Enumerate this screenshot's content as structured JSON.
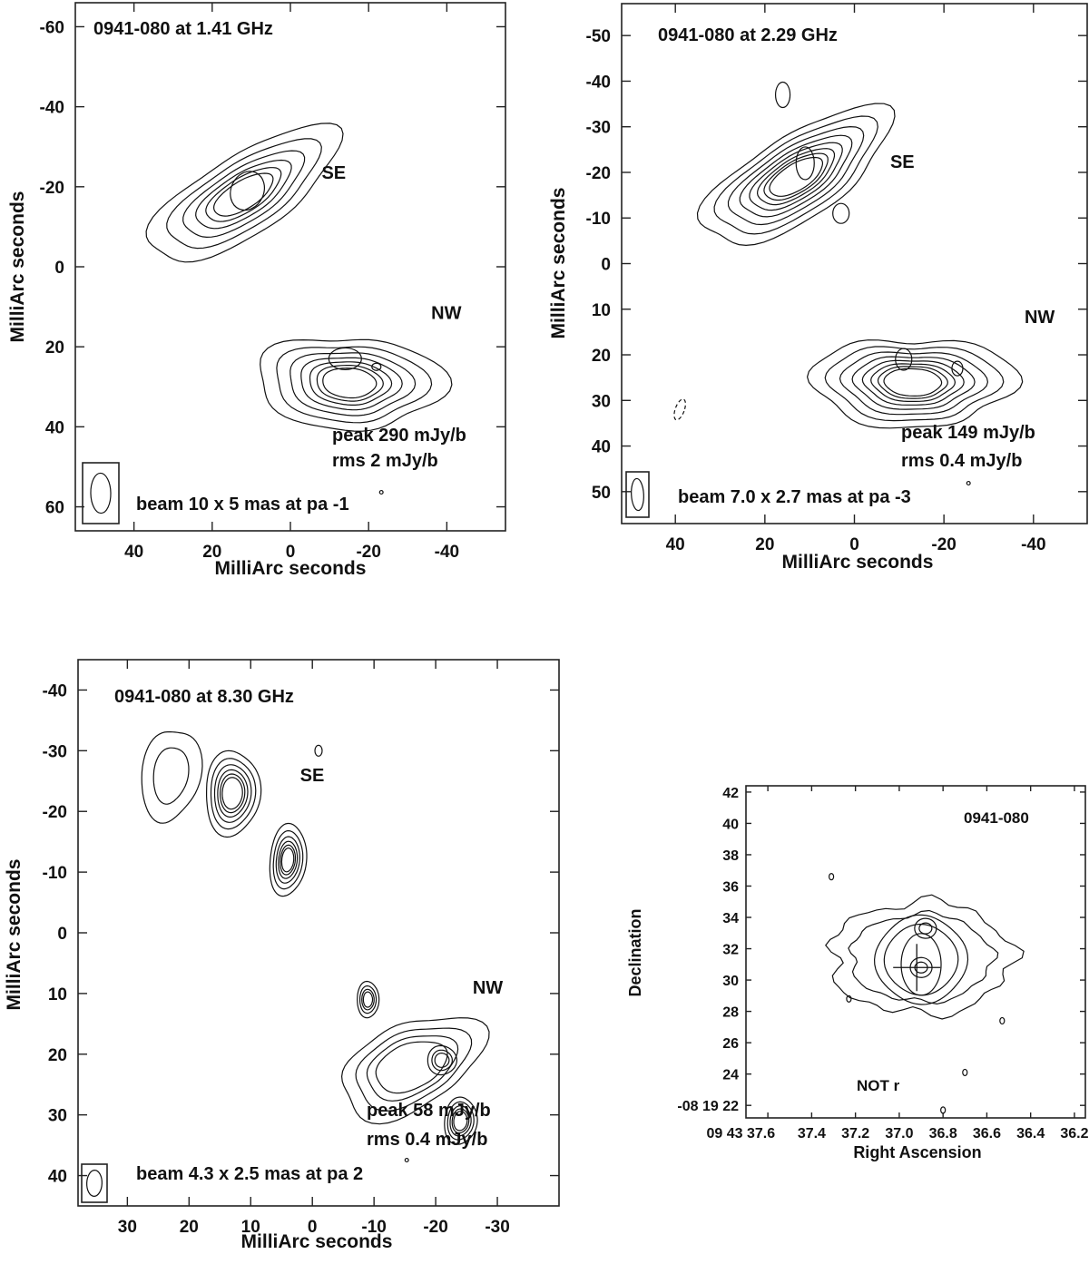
{
  "chart_data": [
    {
      "type": "contour",
      "source": "0941-080",
      "title": "0941-080  at 1.41 GHz",
      "frequency": "1.41 GHz",
      "xlabel": "MilliArc seconds",
      "ylabel": "MilliArc seconds",
      "xlim": [
        55,
        -55
      ],
      "ylim": [
        -66,
        66
      ],
      "xticks": [
        40,
        20,
        0,
        -20,
        -40
      ],
      "xtick_labels": [
        "40",
        "20",
        "0",
        "-20",
        "-40"
      ],
      "yticks": [
        60,
        40,
        20,
        0,
        -20,
        -40,
        -60
      ],
      "ytick_labels": [
        "60",
        "40",
        "20",
        "0",
        "-20",
        "-40",
        "-60"
      ],
      "components": [
        {
          "label": "NW",
          "center": [
            -15,
            28
          ],
          "peaks": [
            [
              -14,
              23
            ],
            [
              -22,
              25
            ]
          ],
          "label_pos": [
            -36,
            13
          ]
        },
        {
          "label": "SE",
          "center": [
            12,
            -20
          ],
          "peaks": [
            [
              11,
              -19
            ]
          ],
          "label_pos": [
            -8,
            -22
          ]
        }
      ],
      "peak_text": "peak 290 mJy/b",
      "rms_text": "rms 2 mJy/b",
      "beam_text": "beam 10 x 5 mas at pa -1",
      "degree_symbol": "°",
      "beam": {
        "major_mas": 10,
        "minor_mas": 5,
        "pa_deg": -1
      },
      "peak_mJy_per_beam": 290,
      "rms_mJy_per_beam": 2
    },
    {
      "type": "contour",
      "source": "0941-080",
      "title": "0941-080  at 2.29 GHz",
      "frequency": "2.29 GHz",
      "xlabel": "MilliArc seconds",
      "ylabel": "MilliArc seconds",
      "xlim": [
        52,
        -52
      ],
      "ylim": [
        -57,
        57
      ],
      "xticks": [
        40,
        20,
        0,
        -20,
        -40
      ],
      "xtick_labels": [
        "40",
        "20",
        "0",
        "-20",
        "-40"
      ],
      "yticks": [
        50,
        40,
        30,
        20,
        10,
        0,
        -10,
        -20,
        -30,
        -40,
        -50
      ],
      "ytick_labels": [
        "50",
        "40",
        "30",
        "20",
        "10",
        "0",
        "-10",
        "-20",
        "-30",
        "-40",
        "-50"
      ],
      "components": [
        {
          "label": "NW",
          "center": [
            -12,
            25
          ],
          "peaks": [
            [
              -11,
              21
            ],
            [
              -23,
              23
            ]
          ],
          "label_pos": [
            -38,
            13
          ]
        },
        {
          "label": "SE",
          "center": [
            12,
            -20
          ],
          "peaks": [
            [
              11,
              -22
            ],
            [
              3,
              -11
            ]
          ],
          "label_pos": [
            -8,
            -21
          ]
        }
      ],
      "peak_text": "peak 149 mJy/b",
      "rms_text": "rms 0.4 mJy/b",
      "beam_text": "beam 7.0 x 2.7 mas at pa -3",
      "degree_symbol": "°",
      "beam": {
        "major_mas": 7.0,
        "minor_mas": 2.7,
        "pa_deg": -3
      },
      "peak_mJy_per_beam": 149,
      "rms_mJy_per_beam": 0.4
    },
    {
      "type": "contour",
      "source": "0941-080",
      "title": "0941-080  at 8.30 GHz",
      "frequency": "8.30 GHz",
      "xlabel": "MilliArc seconds",
      "ylabel": "MilliArc seconds",
      "xlim": [
        38,
        -40
      ],
      "ylim": [
        -45,
        45
      ],
      "xticks": [
        30,
        20,
        10,
        0,
        -10,
        -20,
        -30
      ],
      "xtick_labels": [
        "30",
        "20",
        "10",
        "0",
        "-10",
        "-20",
        "-30"
      ],
      "yticks": [
        40,
        30,
        20,
        10,
        0,
        -10,
        -20,
        -30,
        -40
      ],
      "ytick_labels": [
        "40",
        "30",
        "20",
        "10",
        "0",
        "-10",
        "-20",
        "-30",
        "-40"
      ],
      "components": [
        {
          "label": "NW",
          "center": [
            -15,
            22
          ],
          "peaks": [
            [
              -24,
              31
            ],
            [
              -21,
              21
            ],
            [
              -9,
              11
            ]
          ],
          "label_pos": [
            -26,
            10
          ]
        },
        {
          "label": "SE",
          "center": [
            12,
            -22
          ],
          "peaks": [
            [
              13,
              -24
            ],
            [
              4,
              -12
            ],
            [
              22,
              -27
            ]
          ],
          "label_pos": [
            2,
            -25
          ]
        }
      ],
      "peak_text": "peak 58 mJy/b",
      "rms_text": "rms 0.4 mJy/b",
      "beam_text": "beam 4.3 x 2.5 mas at pa 2",
      "degree_symbol": "°",
      "beam": {
        "major_mas": 4.3,
        "minor_mas": 2.5,
        "pa_deg": 2
      },
      "peak_mJy_per_beam": 58,
      "rms_mJy_per_beam": 0.4
    },
    {
      "type": "contour",
      "source": "0941-080",
      "title": "0941-080",
      "xlabel": "Right Ascension",
      "ylabel": "Declination",
      "xlim": [
        37.7,
        36.15
      ],
      "ylim": [
        42.4,
        21.2
      ],
      "xtick_labels": [
        "09 43 37.6",
        "37.4",
        "37.2",
        "37.0",
        "36.8",
        "36.6",
        "36.4",
        "36.2"
      ],
      "xticks": [
        37.6,
        37.4,
        37.2,
        37.0,
        36.8,
        36.6,
        36.4,
        36.2
      ],
      "ytick_labels": [
        "-08 19 22",
        "24",
        "26",
        "28",
        "30",
        "32",
        "34",
        "36",
        "38",
        "40",
        "42"
      ],
      "yticks": [
        22,
        24,
        26,
        28,
        30,
        32,
        34,
        36,
        38,
        40,
        42
      ],
      "filter": "NOT r",
      "cross_marker": {
        "ra_sec": 36.92,
        "dec_arcsec": 30.8
      },
      "peaks": [
        {
          "ra_sec": 36.9,
          "dec_arcsec": 30.8
        },
        {
          "ra_sec": 36.88,
          "dec_arcsec": 33.3
        }
      ]
    }
  ]
}
